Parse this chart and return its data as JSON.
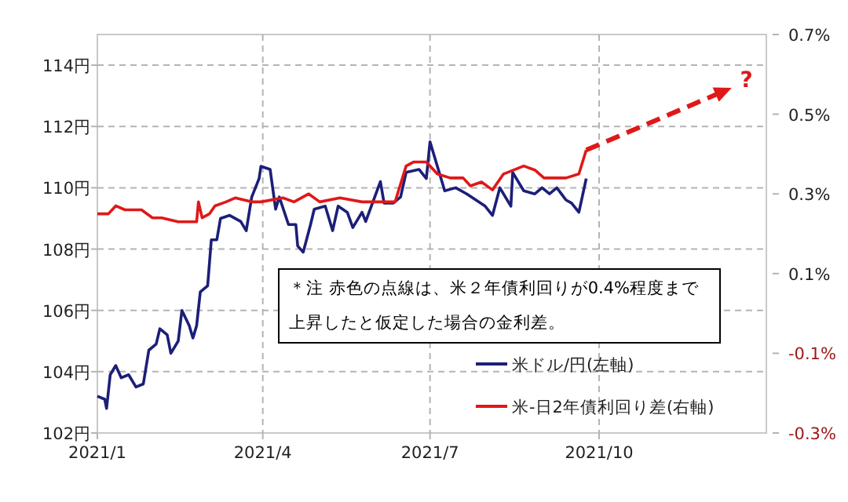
{
  "chart_data": {
    "type": "line",
    "xlim": [
      "2021-01-01",
      "2021-12-31"
    ],
    "xticks": [
      {
        "value": "2021-01-01",
        "label": "2021/1"
      },
      {
        "value": "2021-04-01",
        "label": "2021/4"
      },
      {
        "value": "2021-07-01",
        "label": "2021/7"
      },
      {
        "value": "2021-10-01",
        "label": "2021/10"
      }
    ],
    "ylim": [
      102,
      115
    ],
    "yticks": [
      {
        "value": 102,
        "label": "102円"
      },
      {
        "value": 104,
        "label": "104円"
      },
      {
        "value": 106,
        "label": "106円"
      },
      {
        "value": 108,
        "label": "108円"
      },
      {
        "value": 110,
        "label": "110円"
      },
      {
        "value": 112,
        "label": "112円"
      },
      {
        "value": 114,
        "label": "114円"
      }
    ],
    "y2lim": [
      -0.3,
      0.7
    ],
    "y2ticks": [
      {
        "value": -0.3,
        "label": "-0.3%"
      },
      {
        "value": -0.1,
        "label": "-0.1%"
      },
      {
        "value": 0.1,
        "label": "0.1%"
      },
      {
        "value": 0.3,
        "label": "0.3%"
      },
      {
        "value": 0.5,
        "label": "0.5%"
      },
      {
        "value": 0.7,
        "label": "0.7%"
      }
    ],
    "grid": true,
    "legend": "bottom right",
    "line_style": "solid",
    "annotations": [
      "＊注 赤色の点線は、米２年債利回りが0.4%程度まで上昇したと仮定した場合の金利差。",
      "?"
    ],
    "series": [
      {
        "name": "米ドル/円(左軸)",
        "color": "#1c1f78",
        "x": [
          "2021-01-01",
          "2021-01-05",
          "2021-01-06",
          "2021-01-08",
          "2021-01-11",
          "2021-01-14",
          "2021-01-18",
          "2021-01-22",
          "2021-01-26",
          "2021-01-29",
          "2021-02-02",
          "2021-02-04",
          "2021-02-08",
          "2021-02-10",
          "2021-02-14",
          "2021-02-16",
          "2021-02-20",
          "2021-02-22",
          "2021-02-24",
          "2021-02-26",
          "2021-03-02",
          "2021-03-04",
          "2021-03-07",
          "2021-03-09",
          "2021-03-14",
          "2021-03-20",
          "2021-03-23",
          "2021-03-26",
          "2021-03-30",
          "2021-03-31",
          "2021-04-05",
          "2021-04-08",
          "2021-04-10",
          "2021-04-15",
          "2021-04-19",
          "2021-04-20",
          "2021-04-23",
          "2021-04-27",
          "2021-04-29",
          "2021-05-05",
          "2021-05-09",
          "2021-05-12",
          "2021-05-17",
          "2021-05-20",
          "2021-05-25",
          "2021-05-27",
          "2021-06-04",
          "2021-06-06",
          "2021-06-11",
          "2021-06-15",
          "2021-06-18",
          "2021-06-25",
          "2021-06-29",
          "2021-07-01",
          "2021-07-05",
          "2021-07-09",
          "2021-07-15",
          "2021-07-21",
          "2021-07-26",
          "2021-07-31",
          "2021-08-04",
          "2021-08-08",
          "2021-08-14",
          "2021-08-15",
          "2021-08-21",
          "2021-08-27",
          "2021-08-31",
          "2021-09-04",
          "2021-09-08",
          "2021-09-13",
          "2021-09-16",
          "2021-09-20",
          "2021-09-24"
        ],
        "values": [
          103.2,
          103.1,
          102.8,
          103.9,
          104.2,
          103.8,
          103.9,
          103.5,
          103.6,
          104.7,
          104.9,
          105.4,
          105.2,
          104.6,
          105.0,
          106.0,
          105.5,
          105.1,
          105.5,
          106.6,
          106.8,
          108.3,
          108.3,
          109.0,
          109.1,
          108.9,
          108.6,
          109.7,
          110.3,
          110.7,
          110.6,
          109.3,
          109.7,
          108.8,
          108.8,
          108.1,
          107.9,
          108.8,
          109.3,
          109.4,
          108.6,
          109.4,
          109.2,
          108.7,
          109.2,
          108.9,
          110.2,
          109.5,
          109.5,
          109.7,
          110.5,
          110.6,
          110.3,
          111.5,
          110.7,
          109.9,
          110.0,
          109.8,
          109.6,
          109.4,
          109.1,
          110.0,
          109.4,
          110.5,
          109.9,
          109.8,
          110.0,
          109.8,
          110.0,
          109.6,
          109.5,
          109.2,
          110.3
        ]
      },
      {
        "name": "米-日2年債利回り差(右軸)",
        "color": "#e01818",
        "axis": "y2",
        "x": [
          "2021-01-01",
          "2021-01-07",
          "2021-01-11",
          "2021-01-16",
          "2021-01-25",
          "2021-01-31",
          "2021-02-05",
          "2021-02-14",
          "2021-02-18",
          "2021-02-24",
          "2021-02-25",
          "2021-02-27",
          "2021-03-03",
          "2021-03-06",
          "2021-03-12",
          "2021-03-17",
          "2021-03-26",
          "2021-03-31",
          "2021-04-12",
          "2021-04-18",
          "2021-04-26",
          "2021-05-02",
          "2021-05-13",
          "2021-05-25",
          "2021-06-05",
          "2021-06-12",
          "2021-06-18",
          "2021-06-22",
          "2021-06-29",
          "2021-07-05",
          "2021-07-12",
          "2021-07-19",
          "2021-07-23",
          "2021-07-29",
          "2021-08-04",
          "2021-08-10",
          "2021-08-21",
          "2021-08-27",
          "2021-09-01",
          "2021-09-13",
          "2021-09-20",
          "2021-09-24"
        ],
        "values": [
          0.25,
          0.25,
          0.27,
          0.26,
          0.26,
          0.24,
          0.24,
          0.23,
          0.23,
          0.23,
          0.28,
          0.24,
          0.25,
          0.27,
          0.28,
          0.29,
          0.28,
          0.28,
          0.29,
          0.28,
          0.3,
          0.28,
          0.29,
          0.28,
          0.28,
          0.28,
          0.37,
          0.38,
          0.38,
          0.35,
          0.34,
          0.34,
          0.32,
          0.33,
          0.31,
          0.35,
          0.37,
          0.36,
          0.34,
          0.34,
          0.35,
          0.41
        ]
      },
      {
        "color": "#e01818",
        "axis": "y2",
        "line_style": "dashed",
        "x": [
          "2021-09-24",
          "2021-12-09"
        ],
        "values": [
          0.41,
          0.56
        ]
      }
    ]
  }
}
